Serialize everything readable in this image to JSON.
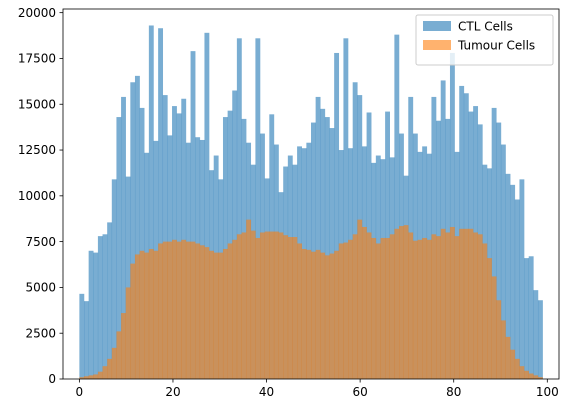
{
  "chart_data": {
    "type": "bar",
    "subtype": "overlaid-histogram",
    "title": "",
    "xlabel": "",
    "ylabel": "",
    "xlim": [
      -3.5,
      102.5
    ],
    "ylim": [
      0,
      20200
    ],
    "bin_start": 0,
    "bin_width": 0.99,
    "xticks": [
      0,
      20,
      40,
      60,
      80,
      100
    ],
    "yticks": [
      0,
      2500,
      5000,
      7500,
      10000,
      12500,
      15000,
      17500,
      20000
    ],
    "grid": false,
    "legend_position": "top-right",
    "series": [
      {
        "name": "CTL Cells",
        "color": "#1f77b4",
        "alpha": 0.6,
        "values": [
          4650,
          4250,
          7000,
          6900,
          7800,
          7900,
          8550,
          10900,
          14300,
          15400,
          11050,
          16200,
          16550,
          14800,
          12350,
          19300,
          13000,
          19150,
          15500,
          13300,
          14900,
          14500,
          15300,
          12900,
          17900,
          13200,
          13050,
          18900,
          11400,
          12200,
          10900,
          14300,
          14650,
          15750,
          18600,
          14200,
          12900,
          11700,
          18600,
          13400,
          10950,
          14450,
          12800,
          10200,
          11600,
          12200,
          11700,
          12700,
          12600,
          12900,
          14000,
          15400,
          14750,
          14300,
          13700,
          17800,
          12500,
          18600,
          12600,
          16200,
          15500,
          12700,
          14550,
          11800,
          12200,
          12000,
          14600,
          12100,
          18800,
          13400,
          11100,
          15400,
          13400,
          12400,
          12700,
          12300,
          15400,
          14100,
          16300,
          14200,
          17800,
          12400,
          16000,
          15600,
          14600,
          14900,
          13900,
          11700,
          11500,
          14800,
          14000,
          12800,
          11200,
          10600,
          9800,
          10900,
          6600,
          6700,
          4850,
          4300
        ],
        "values_precision": "estimated"
      },
      {
        "name": "Tumour Cells",
        "color": "#ff7f0e",
        "alpha": 0.6,
        "values": [
          100,
          150,
          200,
          250,
          400,
          700,
          1100,
          1700,
          2600,
          3600,
          5000,
          6300,
          6800,
          7000,
          6900,
          7100,
          7000,
          7400,
          7500,
          7500,
          7600,
          7500,
          7600,
          7500,
          7500,
          7400,
          7300,
          7200,
          7000,
          6900,
          6900,
          7100,
          7400,
          7600,
          7900,
          8000,
          8700,
          8100,
          7700,
          8000,
          8050,
          8050,
          8050,
          8000,
          7850,
          7750,
          7750,
          7400,
          7100,
          7050,
          6950,
          7050,
          6900,
          6750,
          6850,
          7000,
          7400,
          7450,
          7600,
          7900,
          8700,
          8300,
          8000,
          7700,
          7400,
          7700,
          7700,
          7900,
          8200,
          8350,
          8400,
          8000,
          7550,
          7600,
          7700,
          7600,
          7900,
          7800,
          8200,
          8000,
          8300,
          7800,
          8200,
          8200,
          8200,
          8000,
          7900,
          7400,
          6600,
          5600,
          4300,
          3200,
          2300,
          1600,
          1100,
          700,
          450,
          300,
          200,
          100
        ],
        "values_precision": "estimated"
      }
    ]
  }
}
